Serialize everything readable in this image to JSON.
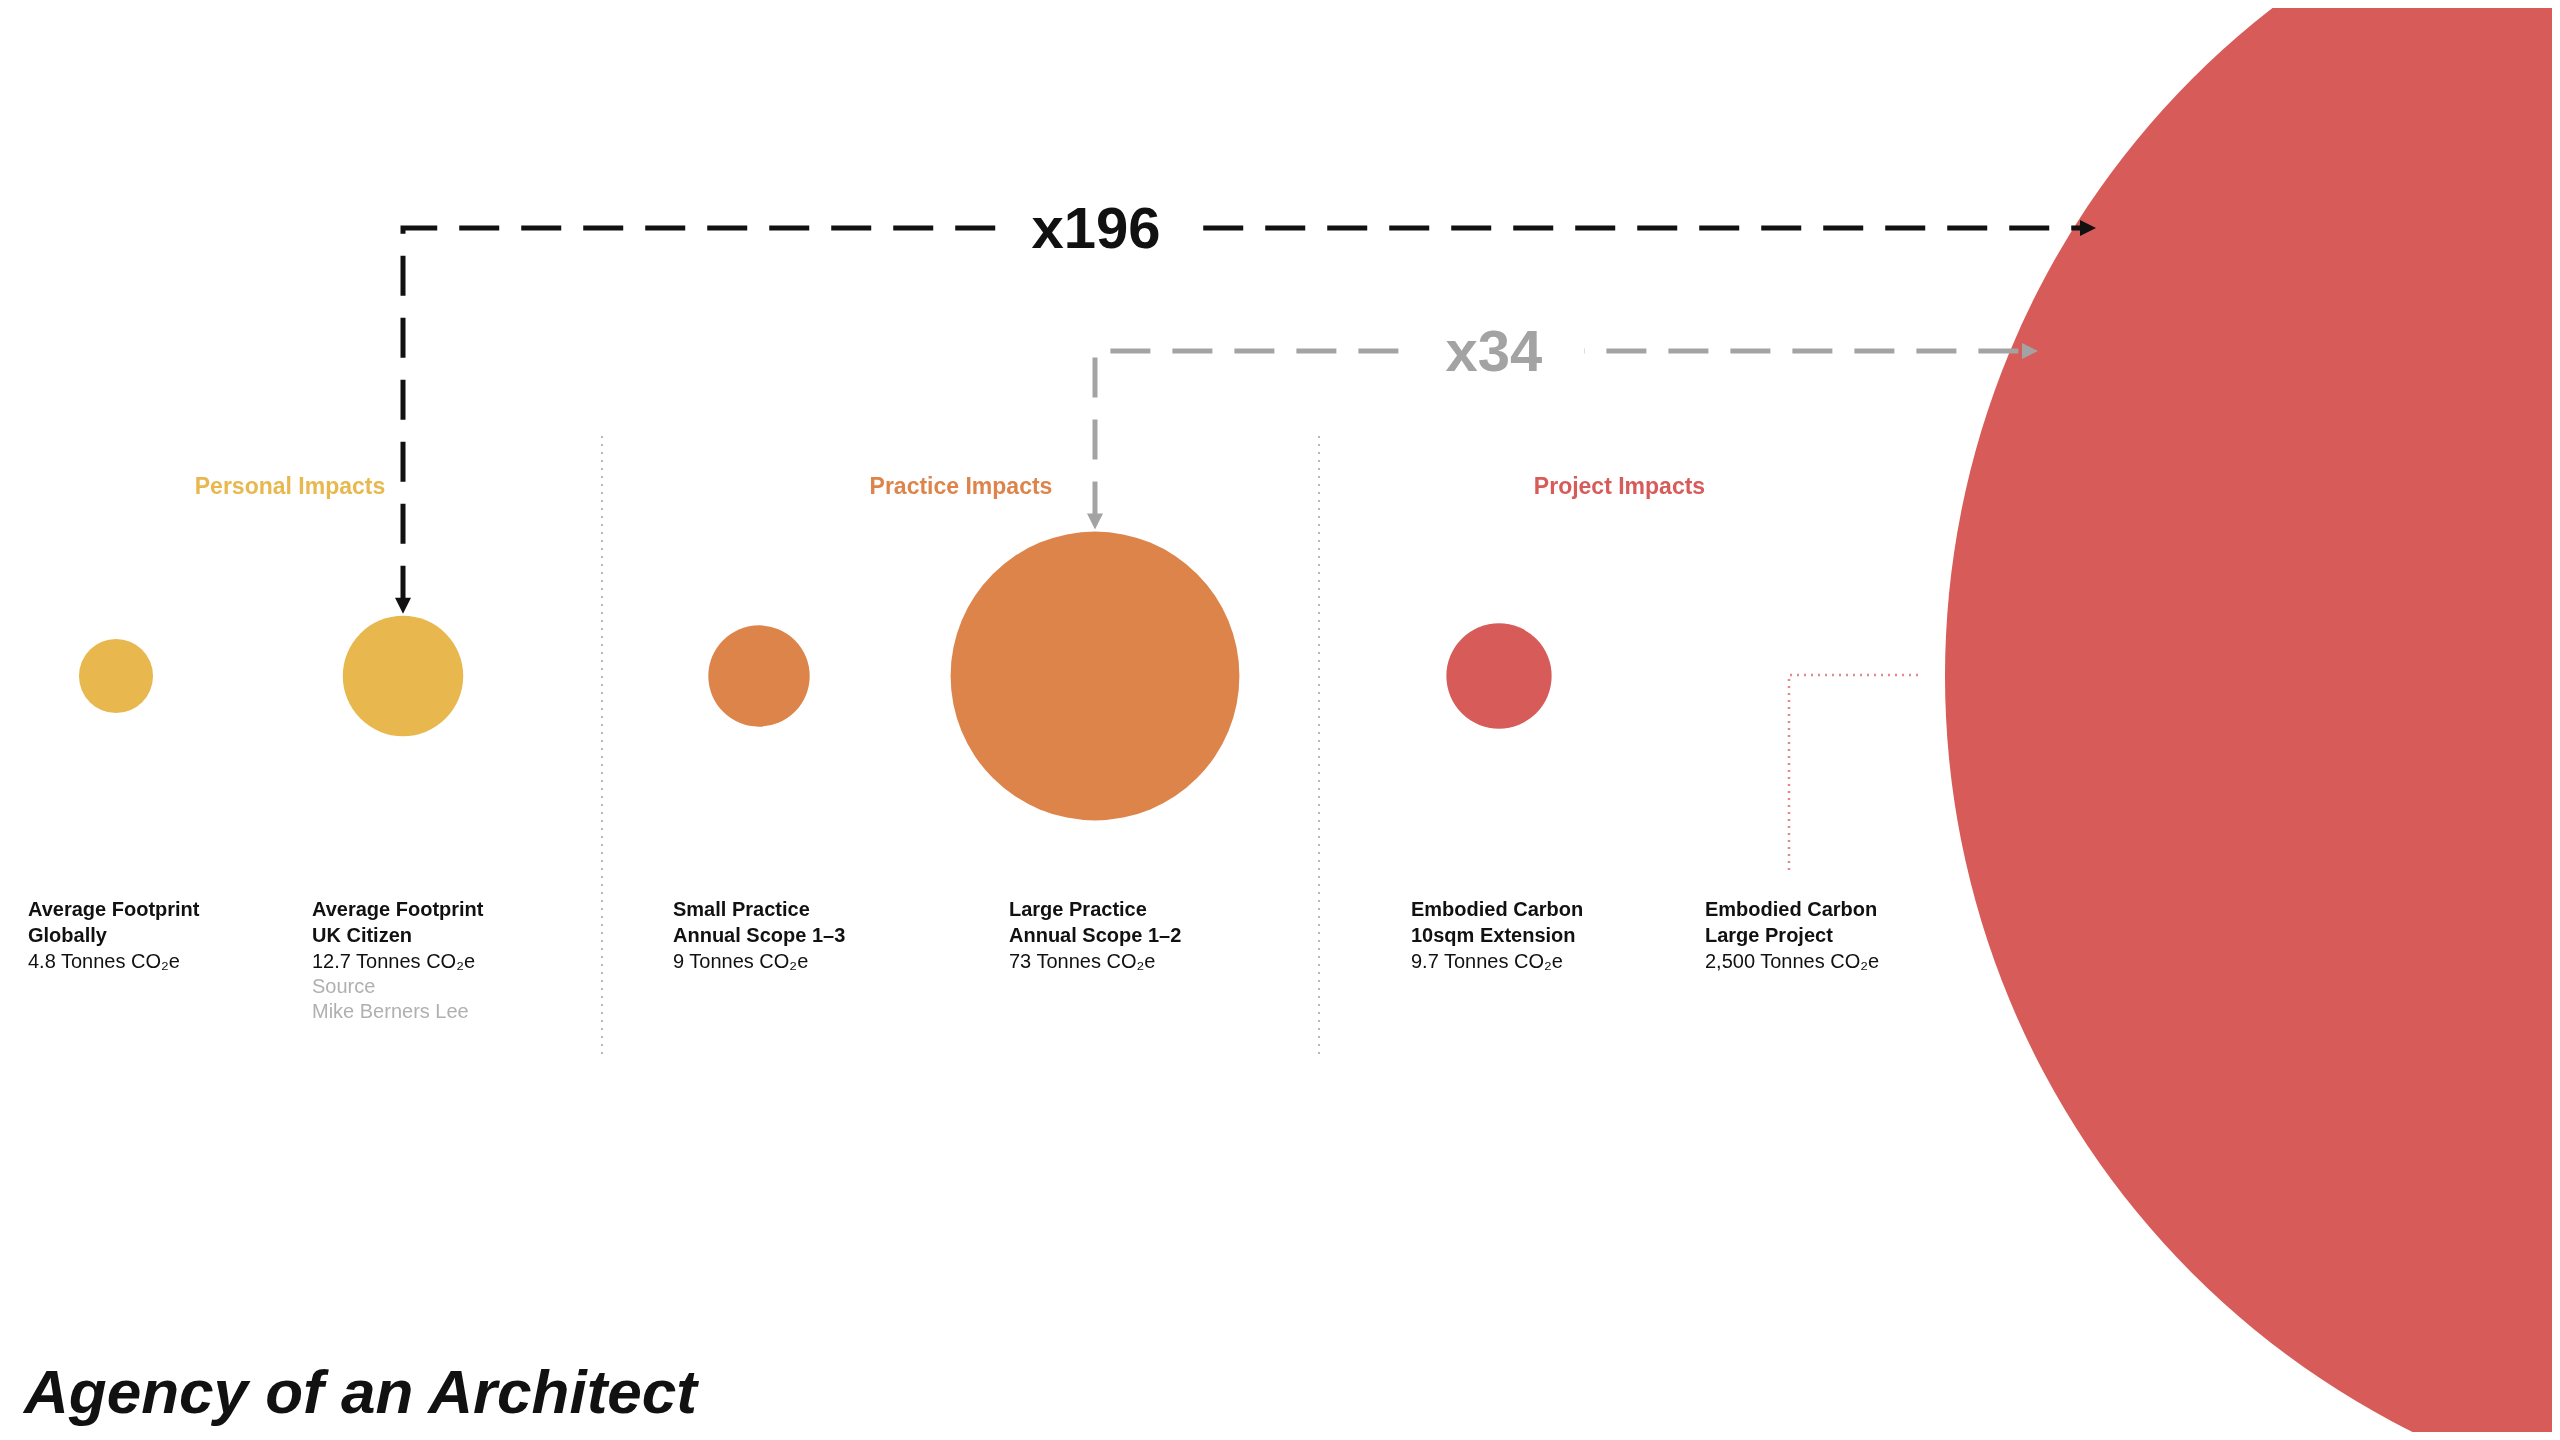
{
  "chart_data": {
    "type": "other",
    "title": "Agency of an Architect",
    "categories": [
      "Average Footprint\nGlobally",
      "Average Footprint\nUK Citizen",
      "Small Practice\nAnnual Scope 1–3",
      "Large Practice\nAnnual Scope 1–2",
      "Embodied Carbon\n10sqm Extension",
      "Embodied Carbon\nLarge Project"
    ],
    "series": [
      {
        "name": "Personal Impacts",
        "color": "#e8b84f",
        "values": [
          4.8,
          12.7,
          null,
          null,
          null,
          null
        ],
        "value_labels": [
          "4.8 Tonnes CO₂e",
          "12.7 Tonnes CO₂e",
          null,
          null,
          null,
          null
        ]
      },
      {
        "name": "Practice Impacts",
        "color": "#dd844b",
        "values": [
          null,
          null,
          9,
          73,
          null,
          null
        ],
        "value_labels": [
          null,
          null,
          "9 Tonnes CO₂e",
          "73 Tonnes CO₂e",
          null,
          null
        ]
      },
      {
        "name": "Project Impacts",
        "color": "#d65b59",
        "values": [
          null,
          null,
          null,
          null,
          9.7,
          2500
        ],
        "value_labels": [
          null,
          null,
          null,
          null,
          "9.7 Tonnes CO₂e",
          "2,500 Tonnes CO₂e"
        ]
      }
    ],
    "annotations": [
      "x196",
      "x34",
      "Source\nMike Berners Lee"
    ]
  }
}
